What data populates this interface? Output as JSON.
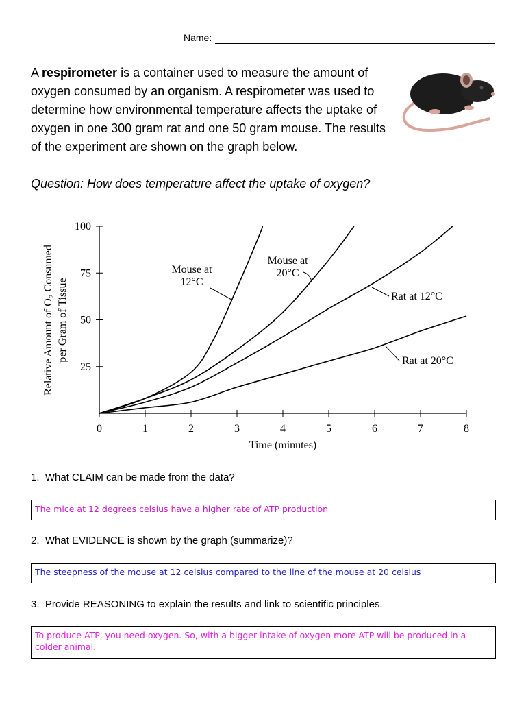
{
  "header": {
    "name_label": "Name:"
  },
  "intro": {
    "lead": "A ",
    "bold_term": "respirometer",
    "body": " is a container used to measure the amount of oxygen consumed by an organism.  A respirometer was used to determine how environmental temperature affects the uptake of oxygen in one 300 gram rat and one 50 gram mouse.  The results of the experiment are shown on the graph below."
  },
  "question": "Question: How does temperature affect the uptake of oxygen?",
  "chart_data": {
    "type": "line",
    "x_label": "Time (minutes)",
    "y_label": [
      "Relative Amount of O₂ Consumed",
      "per Gram of Tissue"
    ],
    "xlim": [
      0,
      8
    ],
    "xticks": [
      0,
      1,
      2,
      3,
      4,
      5,
      6,
      7,
      8
    ],
    "ylim": [
      0,
      100
    ],
    "yticks": [
      25,
      50,
      75,
      100
    ],
    "series": [
      {
        "name": "Mouse at 12°C",
        "color": "#000000",
        "x": [
          0,
          1,
          2,
          2.5,
          3,
          3.5,
          3.55
        ],
        "values": [
          0,
          8,
          22,
          40,
          67,
          96,
          100
        ]
      },
      {
        "name": "Mouse at 20°C",
        "color": "#000000",
        "x": [
          0,
          1,
          2,
          3,
          4,
          5,
          5.55
        ],
        "values": [
          0,
          8,
          18,
          34,
          54,
          82,
          100
        ]
      },
      {
        "name": "Rat at 12°C",
        "color": "#000000",
        "x": [
          0,
          1,
          2,
          3,
          4,
          5,
          6,
          7,
          7.7
        ],
        "values": [
          0,
          6,
          14,
          27,
          41,
          56,
          70,
          86,
          100
        ]
      },
      {
        "name": "Rat at 20°C",
        "color": "#000000",
        "x": [
          0,
          1,
          2,
          3,
          4,
          5,
          6,
          7,
          8
        ],
        "values": [
          0,
          3,
          6,
          14,
          21,
          28,
          35,
          44,
          52
        ]
      }
    ]
  },
  "questions": [
    {
      "number": "1.",
      "text": "What CLAIM can be made from the data?",
      "answer": "The mice at 12 degrees celsius have a higher rate of ATP production",
      "answer_color": "#c81ec8"
    },
    {
      "number": "2.",
      "text": "What EVIDENCE is shown by the graph (summarize)?",
      "answer": "The steepness of the mouse at 12 celsius compared to the line of the mouse at 20 celsius",
      "answer_color": "#2323c8"
    },
    {
      "number": "3.",
      "text": "Provide REASONING to explain the results and link to scientific principles.",
      "answer": "To produce ATP, you need oxygen. So, with a bigger intake of oxygen more ATP will be produced in a colder animal.",
      "answer_color": "#e020e0"
    }
  ]
}
